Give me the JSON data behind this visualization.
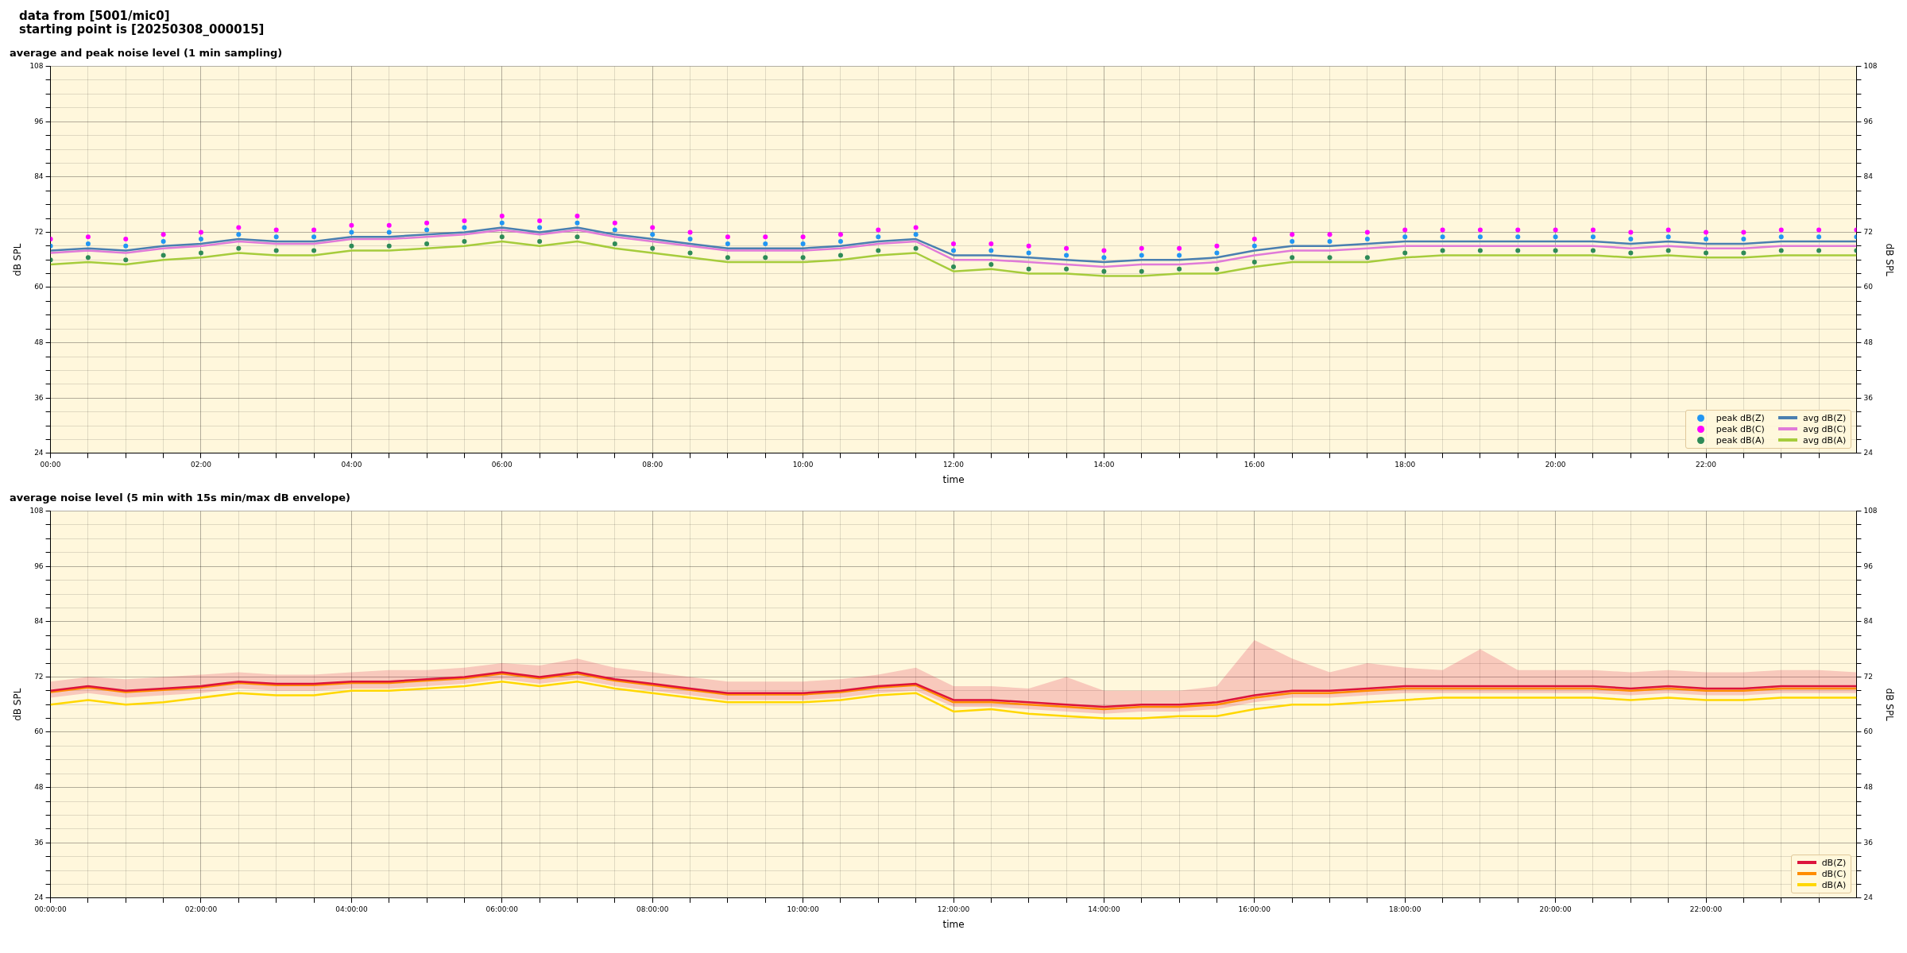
{
  "chart_data": [
    {
      "type": "line",
      "title": "average and peak noise level (1 min sampling)",
      "xlabel": "time",
      "ylabel": "dB SPL",
      "y2label": "dB SPL",
      "annotations": [
        "data from [5001/mic0]",
        "starting point is [20250308_000015]"
      ],
      "x": [
        0,
        0.5,
        1,
        1.5,
        2,
        2.5,
        3,
        3.5,
        4,
        4.5,
        5,
        5.5,
        6,
        6.5,
        7,
        7.5,
        8,
        8.5,
        9,
        9.5,
        10,
        10.5,
        11,
        11.5,
        12,
        12.5,
        13,
        13.5,
        14,
        14.5,
        15,
        15.5,
        16,
        16.5,
        17,
        17.5,
        18,
        18.5,
        19,
        19.5,
        20,
        20.5,
        21,
        21.5,
        22,
        22.5,
        23,
        23.5,
        24
      ],
      "series": [
        {
          "name": "peak dB(Z)",
          "type": "scatter",
          "color": "#2196f3",
          "values": [
            69,
            69.5,
            69,
            70,
            70.5,
            71.5,
            71,
            71,
            72,
            72,
            72.5,
            73,
            74,
            73,
            74,
            72.5,
            71.5,
            70.5,
            69.5,
            69.5,
            69.5,
            70,
            71,
            71.5,
            68,
            68,
            67.5,
            67,
            66.5,
            67,
            67,
            67.5,
            69,
            70,
            70,
            70.5,
            71,
            71,
            71,
            71,
            71,
            71,
            70.5,
            71,
            70.5,
            70.5,
            71,
            71,
            71
          ]
        },
        {
          "name": "peak dB(C)",
          "type": "scatter",
          "color": "#ff00ff",
          "values": [
            70.5,
            71,
            70.5,
            71.5,
            72,
            73,
            72.5,
            72.5,
            73.5,
            73.5,
            74,
            74.5,
            75.5,
            74.5,
            75.5,
            74,
            73,
            72,
            71,
            71,
            71,
            71.5,
            72.5,
            73,
            69.5,
            69.5,
            69,
            68.5,
            68,
            68.5,
            68.5,
            69,
            70.5,
            71.5,
            71.5,
            72,
            72.5,
            72.5,
            72.5,
            72.5,
            72.5,
            72.5,
            72,
            72.5,
            72,
            72,
            72.5,
            72.5,
            72.5
          ]
        },
        {
          "name": "peak dB(A)",
          "type": "scatter",
          "color": "#2e8b57",
          "values": [
            66,
            66.5,
            66,
            67,
            67.5,
            68.5,
            68,
            68,
            69,
            69,
            69.5,
            70,
            71,
            70,
            71,
            69.5,
            68.5,
            67.5,
            66.5,
            66.5,
            66.5,
            67,
            68,
            68.5,
            64.5,
            65,
            64,
            64,
            63.5,
            63.5,
            64,
            64,
            65.5,
            66.5,
            66.5,
            66.5,
            67.5,
            68,
            68,
            68,
            68,
            68,
            67.5,
            68,
            67.5,
            67.5,
            68,
            68,
            68
          ]
        },
        {
          "name": "avg dB(Z)",
          "color": "#4a7fb0",
          "values": [
            68,
            68.5,
            68,
            69,
            69.5,
            70.5,
            70,
            70,
            71,
            71,
            71.5,
            72,
            73,
            72,
            73,
            71.5,
            70.5,
            69.5,
            68.5,
            68.5,
            68.5,
            69,
            70,
            70.5,
            67,
            67,
            66.5,
            66,
            65.5,
            66,
            66,
            66.5,
            68,
            69,
            69,
            69.5,
            70,
            70,
            70,
            70,
            70,
            70,
            69.5,
            70,
            69.5,
            69.5,
            70,
            70,
            70
          ]
        },
        {
          "name": "avg dB(C)",
          "color": "#e07ad8",
          "values": [
            67.5,
            68,
            67.5,
            68.5,
            69,
            70,
            69.5,
            69.5,
            70.5,
            70.5,
            71,
            71.5,
            72.5,
            71.5,
            72.5,
            71,
            70,
            69,
            68,
            68,
            68,
            68.5,
            69.5,
            70,
            66,
            66,
            65.5,
            65,
            64.5,
            65,
            65,
            65.5,
            67,
            68,
            68,
            68.5,
            69,
            69,
            69,
            69,
            69,
            69,
            68.5,
            69,
            68.5,
            68.5,
            69,
            69,
            69
          ]
        },
        {
          "name": "avg dB(A)",
          "color": "#a6cc3c",
          "values": [
            65,
            65.5,
            65,
            66,
            66.5,
            67.5,
            67,
            67,
            68,
            68,
            68.5,
            69,
            70,
            69,
            70,
            68.5,
            67.5,
            66.5,
            65.5,
            65.5,
            65.5,
            66,
            67,
            67.5,
            63.5,
            64,
            63,
            63,
            62.5,
            62.5,
            63,
            63,
            64.5,
            65.5,
            65.5,
            65.5,
            66.5,
            67,
            67,
            67,
            67,
            67,
            66.5,
            67,
            66.5,
            66.5,
            67,
            67,
            67
          ]
        }
      ],
      "xlim": [
        0,
        24
      ],
      "xticks": [
        {
          "value": 0,
          "label": "00:00"
        },
        {
          "value": 0.5,
          "label": null
        },
        {
          "value": 1,
          "label": null
        },
        {
          "value": 1.5,
          "label": null
        },
        {
          "value": 2,
          "label": "02:00"
        },
        {
          "value": 2.5,
          "label": null
        },
        {
          "value": 3,
          "label": null
        },
        {
          "value": 3.5,
          "label": null
        },
        {
          "value": 4,
          "label": "04:00"
        },
        {
          "value": 4.5,
          "label": null
        },
        {
          "value": 5,
          "label": null
        },
        {
          "value": 5.5,
          "label": null
        },
        {
          "value": 6,
          "label": "06:00"
        },
        {
          "value": 6.5,
          "label": null
        },
        {
          "value": 7,
          "label": null
        },
        {
          "value": 7.5,
          "label": null
        },
        {
          "value": 8,
          "label": "08:00"
        },
        {
          "value": 8.5,
          "label": null
        },
        {
          "value": 9,
          "label": null
        },
        {
          "value": 9.5,
          "label": null
        },
        {
          "value": 10,
          "label": "10:00"
        },
        {
          "value": 10.5,
          "label": null
        },
        {
          "value": 11,
          "label": null
        },
        {
          "value": 11.5,
          "label": null
        },
        {
          "value": 12,
          "label": "12:00"
        },
        {
          "value": 12.5,
          "label": null
        },
        {
          "value": 13,
          "label": null
        },
        {
          "value": 13.5,
          "label": null
        },
        {
          "value": 14,
          "label": "14:00"
        },
        {
          "value": 14.5,
          "label": null
        },
        {
          "value": 15,
          "label": null
        },
        {
          "value": 15.5,
          "label": null
        },
        {
          "value": 16,
          "label": "16:00"
        },
        {
          "value": 16.5,
          "label": null
        },
        {
          "value": 17,
          "label": null
        },
        {
          "value": 17.5,
          "label": null
        },
        {
          "value": 18,
          "label": "18:00"
        },
        {
          "value": 18.5,
          "label": null
        },
        {
          "value": 19,
          "label": null
        },
        {
          "value": 19.5,
          "label": null
        },
        {
          "value": 20,
          "label": "20:00"
        },
        {
          "value": 20.5,
          "label": null
        },
        {
          "value": 21,
          "label": null
        },
        {
          "value": 21.5,
          "label": null
        },
        {
          "value": 22,
          "label": "22:00"
        },
        {
          "value": 22.5,
          "label": null
        },
        {
          "value": 23,
          "label": null
        },
        {
          "value": 23.5,
          "label": null
        }
      ],
      "ylim": [
        24,
        108
      ],
      "yticks": [
        24,
        {
          "value": 27,
          "label": null
        },
        {
          "value": 30,
          "label": null
        },
        {
          "value": 33,
          "label": null
        },
        36,
        {
          "value": 39,
          "label": null
        },
        {
          "value": 42,
          "label": null
        },
        {
          "value": 45,
          "label": null
        },
        48,
        {
          "value": 51,
          "label": null
        },
        {
          "value": 54,
          "label": null
        },
        {
          "value": 57,
          "label": null
        },
        60,
        {
          "value": 63,
          "label": null
        },
        {
          "value": 66,
          "label": null
        },
        {
          "value": 69,
          "label": null
        },
        72,
        {
          "value": 75,
          "label": null
        },
        {
          "value": 78,
          "label": null
        },
        {
          "value": 81,
          "label": null
        },
        84,
        {
          "value": 87,
          "label": null
        },
        {
          "value": 90,
          "label": null
        },
        {
          "value": 93,
          "label": null
        },
        96,
        {
          "value": 99,
          "label": null
        },
        {
          "value": 102,
          "label": null
        },
        {
          "value": 105,
          "label": null
        },
        108
      ],
      "y2lim": [
        24,
        108
      ],
      "y2ticks": [
        24,
        {
          "value": 27,
          "label": null
        },
        {
          "value": 30,
          "label": null
        },
        {
          "value": 33,
          "label": null
        },
        36,
        {
          "value": 39,
          "label": null
        },
        {
          "value": 42,
          "label": null
        },
        {
          "value": 45,
          "label": null
        },
        48,
        {
          "value": 51,
          "label": null
        },
        {
          "value": 54,
          "label": null
        },
        {
          "value": 57,
          "label": null
        },
        60,
        {
          "value": 63,
          "label": null
        },
        {
          "value": 66,
          "label": null
        },
        {
          "value": 69,
          "label": null
        },
        72,
        {
          "value": 75,
          "label": null
        },
        {
          "value": 78,
          "label": null
        },
        {
          "value": 81,
          "label": null
        },
        84,
        {
          "value": 87,
          "label": null
        },
        {
          "value": 90,
          "label": null
        },
        {
          "value": 93,
          "label": null
        },
        96,
        {
          "value": 99,
          "label": null
        },
        {
          "value": 102,
          "label": null
        },
        {
          "value": 105,
          "label": null
        },
        108
      ],
      "grid": true,
      "legend": "bottom right"
    },
    {
      "type": "line",
      "title": "average noise level (5 min with 15s min/max dB envelope)",
      "xlabel": "time",
      "ylabel": "dB SPL",
      "y2label": "dB SPL",
      "x": [
        0,
        0.5,
        1,
        1.5,
        2,
        2.5,
        3,
        3.5,
        4,
        4.5,
        5,
        5.5,
        6,
        6.5,
        7,
        7.5,
        8,
        8.5,
        9,
        9.5,
        10,
        10.5,
        11,
        11.5,
        12,
        12.5,
        13,
        13.5,
        14,
        14.5,
        15,
        15.5,
        16,
        16.5,
        17,
        17.5,
        18,
        18.5,
        19,
        19.5,
        20,
        20.5,
        21,
        21.5,
        22,
        22.5,
        23,
        23.5,
        24
      ],
      "series": [
        {
          "name": "dB(Z)",
          "color": "#dc143c",
          "values": [
            69,
            70,
            69,
            69.5,
            70,
            71,
            70.5,
            70.5,
            71,
            71,
            71.5,
            72,
            73,
            72,
            73,
            71.5,
            70.5,
            69.5,
            68.5,
            68.5,
            68.5,
            69,
            70,
            70.5,
            67,
            67,
            66.5,
            66,
            65.5,
            66,
            66,
            66.5,
            68,
            69,
            69,
            69.5,
            70,
            70,
            70,
            70,
            70,
            70,
            69.5,
            70,
            69.5,
            69.5,
            70,
            70,
            70
          ],
          "lower": [
            67.5,
            68.5,
            67.5,
            68,
            68.5,
            69.5,
            69,
            69,
            69.5,
            69.5,
            70,
            70.5,
            71.5,
            70.5,
            71.5,
            70,
            69,
            68,
            67,
            67,
            67,
            67.5,
            68.5,
            69,
            65.5,
            65.5,
            65,
            64.5,
            64,
            64.5,
            64.5,
            65,
            66.5,
            67.5,
            67.5,
            68,
            68.5,
            68.5,
            68.5,
            68.5,
            68.5,
            68.5,
            68,
            68.5,
            68,
            68,
            68.5,
            68.5,
            68.5
          ],
          "upper": [
            71,
            72,
            71.5,
            72,
            72.5,
            73,
            72.5,
            72.5,
            73,
            73.5,
            73.5,
            74,
            75,
            74.5,
            76,
            74,
            73,
            72,
            71,
            71,
            71,
            71.5,
            72.5,
            74,
            70,
            70,
            69.5,
            72,
            69,
            69,
            69,
            70,
            80,
            76,
            73,
            75,
            74,
            73.5,
            78,
            73.5,
            73.5,
            73.5,
            73,
            73.5,
            73,
            73,
            73.5,
            73.5,
            73
          ]
        },
        {
          "name": "dB(C)",
          "color": "#ff8c00",
          "values": [
            68.7,
            69.7,
            68.7,
            69.2,
            69.7,
            70.7,
            70.2,
            70.2,
            70.7,
            70.7,
            71.2,
            71.7,
            72.7,
            71.7,
            72.7,
            71.2,
            70.2,
            69.2,
            68.2,
            68.2,
            68.2,
            68.7,
            69.7,
            70.2,
            66.5,
            66.5,
            66,
            65.5,
            65,
            65.5,
            65.5,
            66,
            67.5,
            68.5,
            68.5,
            69,
            69.5,
            69.5,
            69.5,
            69.5,
            69.5,
            69.5,
            69,
            69.5,
            69,
            69,
            69.5,
            69.5,
            69.5
          ]
        },
        {
          "name": "dB(A)",
          "color": "#ffd700",
          "values": [
            66,
            67,
            66,
            66.5,
            67.5,
            68.5,
            68,
            68,
            69,
            69,
            69.5,
            70,
            71,
            70,
            71,
            69.5,
            68.5,
            67.5,
            66.5,
            66.5,
            66.5,
            67,
            68,
            68.5,
            64.5,
            65,
            64,
            63.5,
            63,
            63,
            63.5,
            63.5,
            65,
            66,
            66,
            66.5,
            67,
            67.5,
            67.5,
            67.5,
            67.5,
            67.5,
            67,
            67.5,
            67,
            67,
            67.5,
            67.5,
            67.5
          ]
        }
      ],
      "xlim": [
        0,
        24
      ],
      "xticks": [
        {
          "value": 0,
          "label": "00:00:00"
        },
        {
          "value": 0.5,
          "label": null
        },
        {
          "value": 1,
          "label": null
        },
        {
          "value": 1.5,
          "label": null
        },
        {
          "value": 2,
          "label": "02:00:00"
        },
        {
          "value": 2.5,
          "label": null
        },
        {
          "value": 3,
          "label": null
        },
        {
          "value": 3.5,
          "label": null
        },
        {
          "value": 4,
          "label": "04:00:00"
        },
        {
          "value": 4.5,
          "label": null
        },
        {
          "value": 5,
          "label": null
        },
        {
          "value": 5.5,
          "label": null
        },
        {
          "value": 6,
          "label": "06:00:00"
        },
        {
          "value": 6.5,
          "label": null
        },
        {
          "value": 7,
          "label": null
        },
        {
          "value": 7.5,
          "label": null
        },
        {
          "value": 8,
          "label": "08:00:00"
        },
        {
          "value": 8.5,
          "label": null
        },
        {
          "value": 9,
          "label": null
        },
        {
          "value": 9.5,
          "label": null
        },
        {
          "value": 10,
          "label": "10:00:00"
        },
        {
          "value": 10.5,
          "label": null
        },
        {
          "value": 11,
          "label": null
        },
        {
          "value": 11.5,
          "label": null
        },
        {
          "value": 12,
          "label": "12:00:00"
        },
        {
          "value": 12.5,
          "label": null
        },
        {
          "value": 13,
          "label": null
        },
        {
          "value": 13.5,
          "label": null
        },
        {
          "value": 14,
          "label": "14:00:00"
        },
        {
          "value": 14.5,
          "label": null
        },
        {
          "value": 15,
          "label": null
        },
        {
          "value": 15.5,
          "label": null
        },
        {
          "value": 16,
          "label": "16:00:00"
        },
        {
          "value": 16.5,
          "label": null
        },
        {
          "value": 17,
          "label": null
        },
        {
          "value": 17.5,
          "label": null
        },
        {
          "value": 18,
          "label": "18:00:00"
        },
        {
          "value": 18.5,
          "label": null
        },
        {
          "value": 19,
          "label": null
        },
        {
          "value": 19.5,
          "label": null
        },
        {
          "value": 20,
          "label": "20:00:00"
        },
        {
          "value": 20.5,
          "label": null
        },
        {
          "value": 21,
          "label": null
        },
        {
          "value": 21.5,
          "label": null
        },
        {
          "value": 22,
          "label": "22:00:00"
        },
        {
          "value": 22.5,
          "label": null
        },
        {
          "value": 23,
          "label": null
        },
        {
          "value": 23.5,
          "label": null
        }
      ],
      "ylim": [
        24,
        108
      ],
      "yticks": [
        24,
        {
          "value": 27,
          "label": null
        },
        {
          "value": 30,
          "label": null
        },
        {
          "value": 33,
          "label": null
        },
        36,
        {
          "value": 39,
          "label": null
        },
        {
          "value": 42,
          "label": null
        },
        {
          "value": 45,
          "label": null
        },
        48,
        {
          "value": 51,
          "label": null
        },
        {
          "value": 54,
          "label": null
        },
        {
          "value": 57,
          "label": null
        },
        60,
        {
          "value": 63,
          "label": null
        },
        {
          "value": 66,
          "label": null
        },
        {
          "value": 69,
          "label": null
        },
        72,
        {
          "value": 75,
          "label": null
        },
        {
          "value": 78,
          "label": null
        },
        {
          "value": 81,
          "label": null
        },
        84,
        {
          "value": 87,
          "label": null
        },
        {
          "value": 90,
          "label": null
        },
        {
          "value": 93,
          "label": null
        },
        96,
        {
          "value": 99,
          "label": null
        },
        {
          "value": 102,
          "label": null
        },
        {
          "value": 105,
          "label": null
        },
        108
      ],
      "y2lim": [
        24,
        108
      ],
      "y2ticks": [
        24,
        {
          "value": 27,
          "label": null
        },
        {
          "value": 30,
          "label": null
        },
        {
          "value": 33,
          "label": null
        },
        36,
        {
          "value": 39,
          "label": null
        },
        {
          "value": 42,
          "label": null
        },
        {
          "value": 45,
          "label": null
        },
        48,
        {
          "value": 51,
          "label": null
        },
        {
          "value": 54,
          "label": null
        },
        {
          "value": 57,
          "label": null
        },
        60,
        {
          "value": 63,
          "label": null
        },
        {
          "value": 66,
          "label": null
        },
        {
          "value": 69,
          "label": null
        },
        72,
        {
          "value": 75,
          "label": null
        },
        {
          "value": 78,
          "label": null
        },
        {
          "value": 81,
          "label": null
        },
        84,
        {
          "value": 87,
          "label": null
        },
        {
          "value": 90,
          "label": null
        },
        {
          "value": 93,
          "label": null
        },
        96,
        {
          "value": 99,
          "label": null
        },
        {
          "value": 102,
          "label": null
        },
        {
          "value": 105,
          "label": null
        },
        108
      ],
      "grid": true,
      "legend": "bottom right"
    }
  ]
}
